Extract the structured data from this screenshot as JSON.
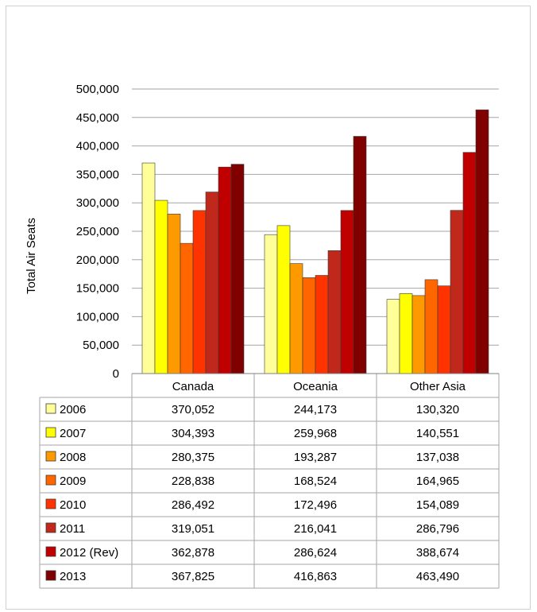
{
  "chart_data": {
    "type": "bar",
    "ylabel": "Total Air Seats",
    "ylim": [
      0,
      500000
    ],
    "yticks": [
      "0",
      "50,000",
      "100,000",
      "150,000",
      "200,000",
      "250,000",
      "300,000",
      "350,000",
      "400,000",
      "450,000",
      "500,000"
    ],
    "grid": true,
    "legend": "data-table",
    "categories": [
      "Canada",
      "Oceania",
      "Other Asia"
    ],
    "series": [
      {
        "name": "2006",
        "color": "#FFFF99",
        "values": [
          370052,
          244173,
          130320
        ],
        "labels": [
          "370,052",
          "244,173",
          "130,320"
        ]
      },
      {
        "name": "2007",
        "color": "#FFFF00",
        "values": [
          304393,
          259968,
          140551
        ],
        "labels": [
          "304,393",
          "259,968",
          "140,551"
        ]
      },
      {
        "name": "2008",
        "color": "#FF9900",
        "values": [
          280375,
          193287,
          137038
        ],
        "labels": [
          "280,375",
          "193,287",
          "137,038"
        ]
      },
      {
        "name": "2009",
        "color": "#FF6600",
        "values": [
          228838,
          168524,
          164965
        ],
        "labels": [
          "228,838",
          "168,524",
          "164,965"
        ]
      },
      {
        "name": "2010",
        "color": "#FF3300",
        "values": [
          286492,
          172496,
          154089
        ],
        "labels": [
          "286,492",
          "172,496",
          "154,089"
        ]
      },
      {
        "name": "2011",
        "color": "#C0281C",
        "values": [
          319051,
          216041,
          286796
        ],
        "labels": [
          "319,051",
          "216,041",
          "286,796"
        ]
      },
      {
        "name": "2012 (Rev)",
        "color": "#C00000",
        "values": [
          362878,
          286624,
          388674
        ],
        "labels": [
          "362,878",
          "286,624",
          "388,674"
        ]
      },
      {
        "name": "2013",
        "color": "#800000",
        "values": [
          367825,
          416863,
          463490
        ],
        "labels": [
          "367,825",
          "416,863",
          "463,490"
        ]
      }
    ]
  }
}
